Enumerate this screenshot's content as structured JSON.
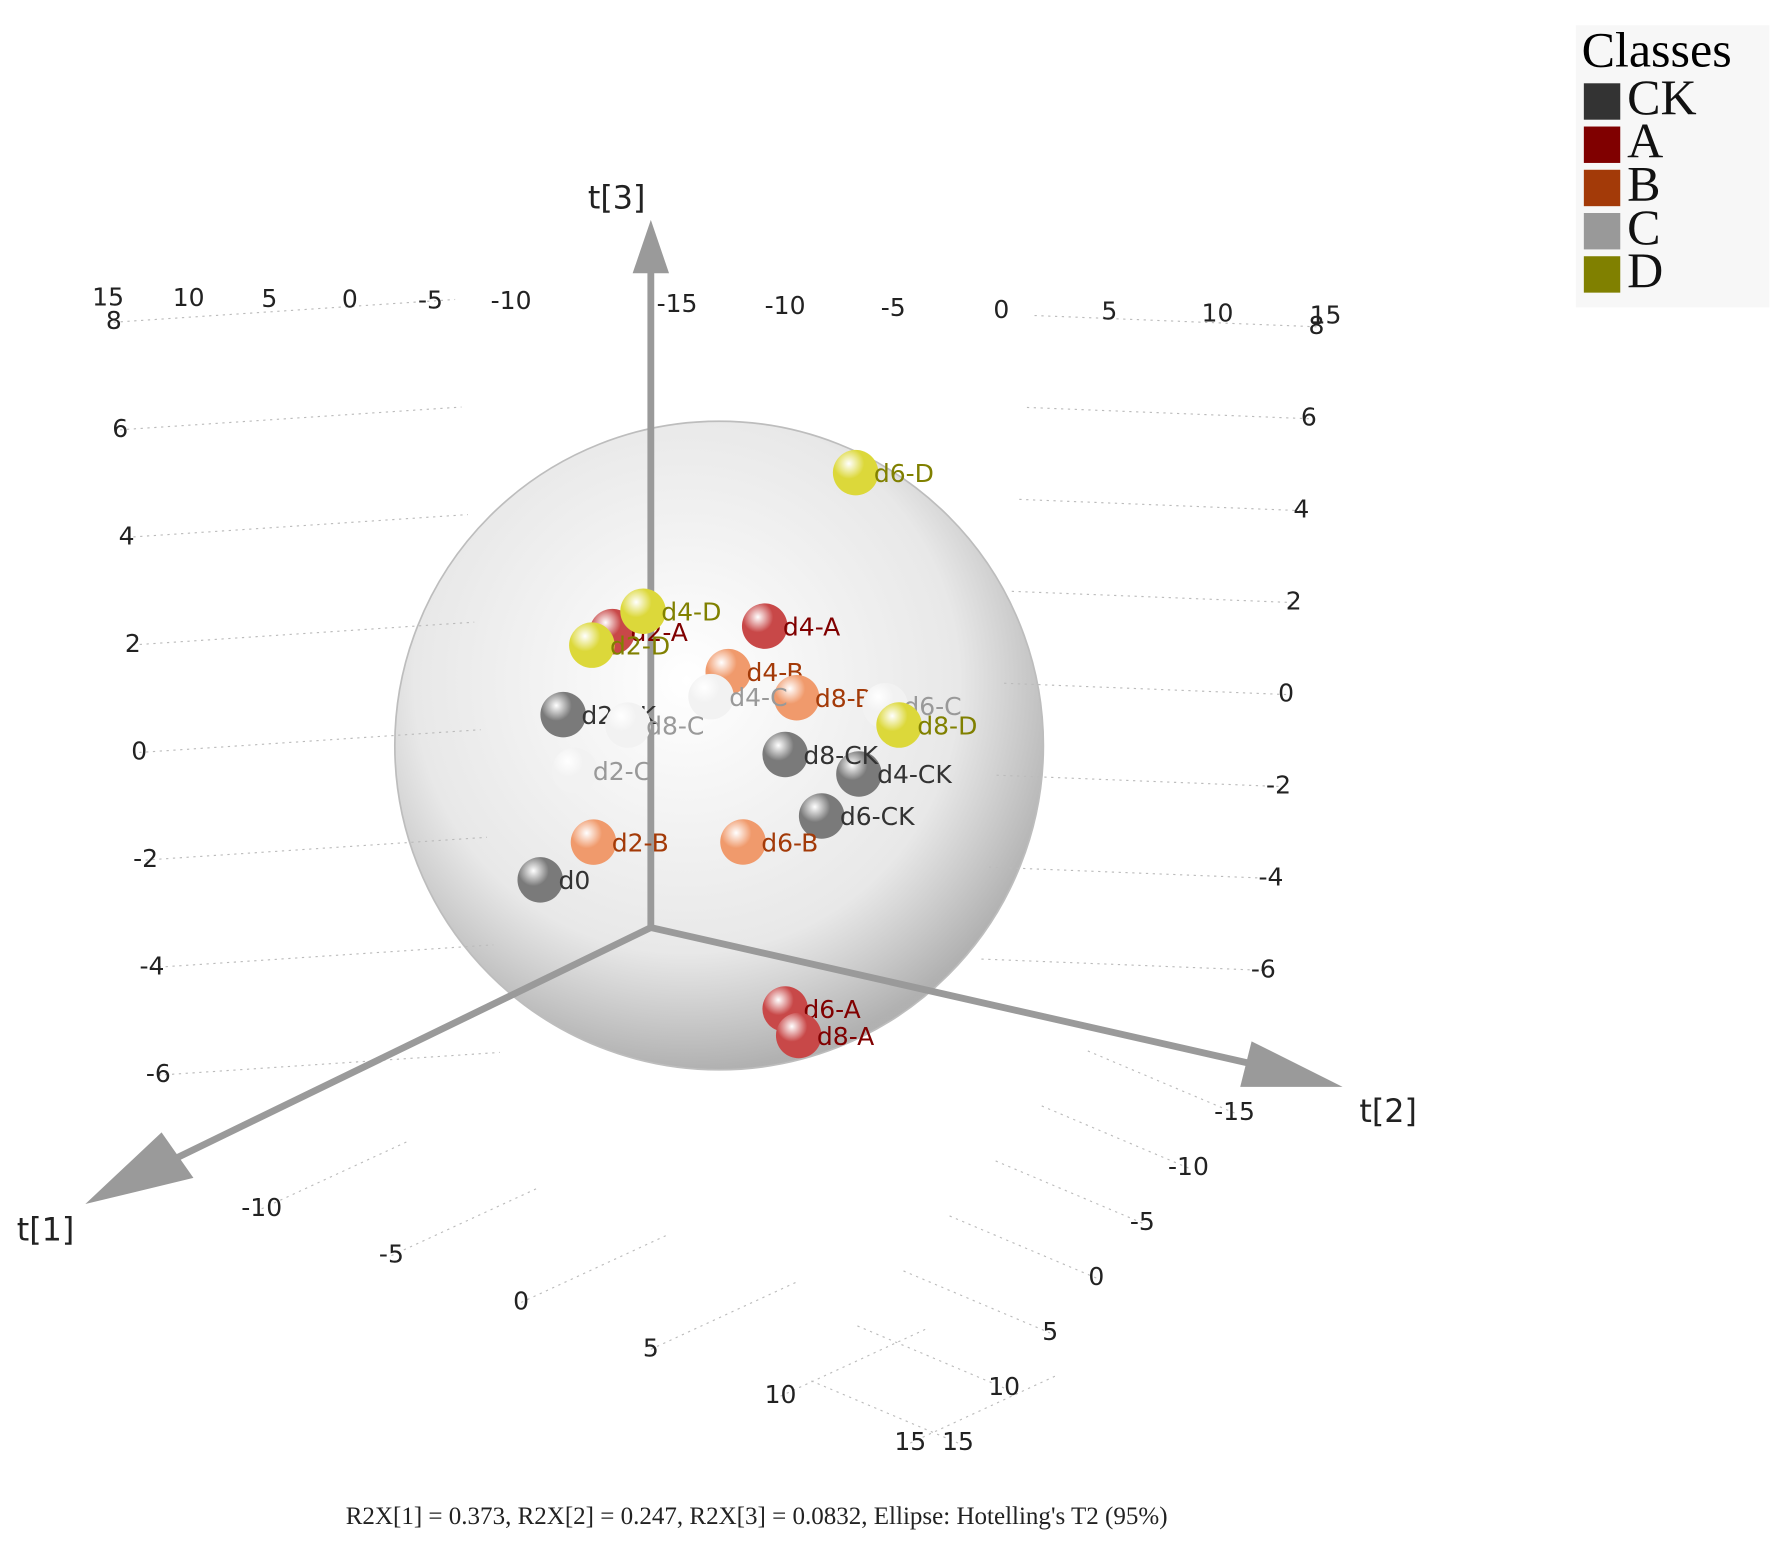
{
  "chart_data": {
    "type": "scatter3d",
    "footnote": "R2X[1] = 0.373, R2X[2] = 0.247, R2X[3] = 0.0832, Ellipse: Hotelling's T2 (95%)",
    "x_label": "t[1]",
    "y_label": "t[2]",
    "z_label": "t[3]",
    "legend_title": "Classes",
    "legend_position": "upper right",
    "grid": true,
    "xlim": [
      -15,
      15
    ],
    "xticks": [
      -10,
      -5,
      0,
      5,
      10,
      15
    ],
    "ylim": [
      -15,
      15
    ],
    "yticks": [
      -15,
      -10,
      -5,
      0,
      5,
      10,
      15
    ],
    "zlim": [
      -7,
      8
    ],
    "zticks": [
      -6,
      -4,
      -2,
      0,
      2,
      4,
      6,
      8
    ],
    "series": [
      {
        "name": "CK",
        "color": "#333333",
        "marker_color": "#7a7a7a",
        "labels": [
          "d0",
          "d2-CK",
          "d4-CK",
          "d6-CK",
          "d8-CK"
        ],
        "t1": [
          3.2,
          2.64,
          -4.58,
          -3.67,
          -2.78
        ],
        "t2": [
          -3.2,
          -2.64,
          4.58,
          3.67,
          2.78
        ],
        "t3": [
          -2.3,
          0.89,
          -0.75,
          -1.51,
          -0.25
        ]
      },
      {
        "name": "A",
        "color": "#800000",
        "marker_color": "#c84848",
        "labels": [
          "d2-A",
          "d4-A",
          "d6-A",
          "d8-A"
        ],
        "t1": [
          1.44,
          -2.28,
          -2.78,
          -3.11
        ],
        "t2": [
          -1.44,
          2.28,
          2.78,
          3.11
        ],
        "t3": [
          2.43,
          2.29,
          -5.22,
          -5.76
        ]
      },
      {
        "name": "B",
        "color": "#a33a08",
        "marker_color": "#f09a6c",
        "labels": [
          "d2-B",
          "d4-B",
          "d6-B",
          "d8-B"
        ],
        "t1": [
          1.9,
          -1.39,
          -1.75,
          -3.06
        ],
        "t2": [
          -1.9,
          1.39,
          1.75,
          3.06
        ],
        "t3": [
          -1.65,
          1.46,
          -1.89,
          0.84
        ]
      },
      {
        "name": "C",
        "color": "#999999",
        "marker_color": "#f2f2f2",
        "labels": [
          "d2-C",
          "d4-C",
          "d6-C",
          "d8-C"
        ],
        "t1": [
          2.36,
          -0.97,
          -5.22,
          1.06
        ],
        "t2": [
          -2.36,
          0.97,
          5.22,
          -1.06
        ],
        "t3": [
          -0.22,
          1.0,
          0.54,
          0.58
        ]
      },
      {
        "name": "D",
        "color": "#808000",
        "marker_color": "#dcd83a",
        "labels": [
          "d2-D",
          "d4-D",
          "d6-D",
          "d8-D"
        ],
        "t1": [
          1.94,
          0.69,
          -4.5,
          -5.56
        ],
        "t2": [
          -1.94,
          -0.69,
          4.5,
          5.56
        ],
        "t3": [
          2.2,
          2.78,
          5.14,
          0.14
        ]
      }
    ]
  }
}
